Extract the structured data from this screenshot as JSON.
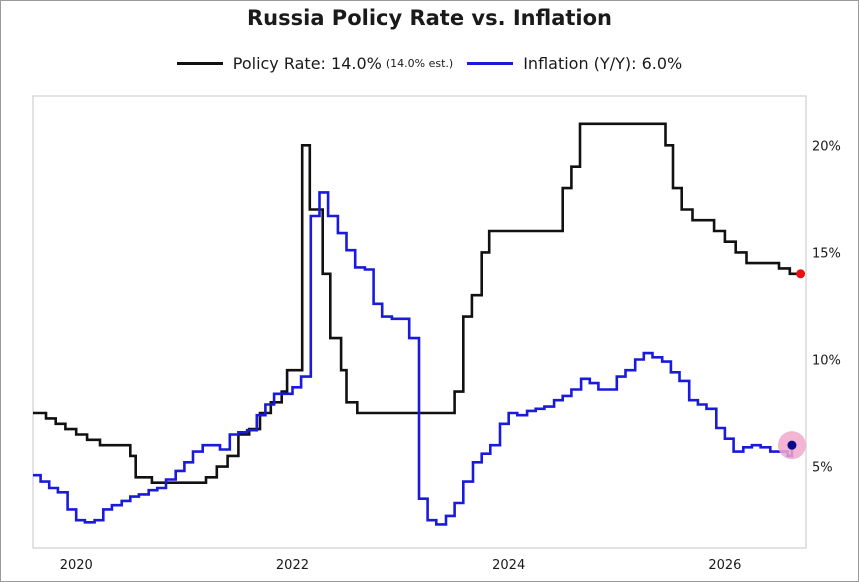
{
  "chart_data": {
    "type": "line",
    "title": "Russia Policy Rate vs. Inflation",
    "xlabel": "",
    "ylabel": "",
    "xlim": [
      2019.6,
      2026.75
    ],
    "ylim": [
      1.2,
      22.3
    ],
    "grid": false,
    "legend_position": "top",
    "x_ticks": [
      {
        "value": 2020,
        "label": "2020"
      },
      {
        "value": 2022,
        "label": "2022"
      },
      {
        "value": 2024,
        "label": "2024"
      },
      {
        "value": 2026,
        "label": "2026"
      }
    ],
    "y_ticks": [
      {
        "value": 5,
        "label": "5%"
      },
      {
        "value": 10,
        "label": "10%"
      },
      {
        "value": 15,
        "label": "15%"
      },
      {
        "value": 20,
        "label": "20%"
      }
    ],
    "series": [
      {
        "name": "Policy Rate",
        "legend_label": "Policy Rate: 14.0%",
        "legend_note": "(14.0% est.)",
        "color": "#111111",
        "endpoint_color": "#e81010",
        "endpoint": [
          2026.7,
          14.0
        ],
        "x": [
          2019.6,
          2019.72,
          2019.81,
          2019.9,
          2020.0,
          2020.1,
          2020.22,
          2020.33,
          2020.5,
          2020.55,
          2020.7,
          2021.0,
          2021.2,
          2021.3,
          2021.4,
          2021.5,
          2021.6,
          2021.7,
          2021.8,
          2021.9,
          2021.95,
          2022.0,
          2022.09,
          2022.16,
          2022.28,
          2022.35,
          2022.45,
          2022.5,
          2022.6,
          2022.75,
          2023.0,
          2023.25,
          2023.5,
          2023.58,
          2023.66,
          2023.75,
          2023.82,
          2023.95,
          2024.5,
          2024.58,
          2024.66,
          2024.75,
          2024.83,
          2025.0,
          2025.25,
          2025.45,
          2025.52,
          2025.6,
          2025.7,
          2025.8,
          2025.9,
          2026.0,
          2026.1,
          2026.2,
          2026.3,
          2026.4,
          2026.5,
          2026.6,
          2026.7
        ],
        "y": [
          7.5,
          7.25,
          7.0,
          6.75,
          6.5,
          6.25,
          6.0,
          6.0,
          5.5,
          4.5,
          4.25,
          4.25,
          4.5,
          5.0,
          5.5,
          6.5,
          6.75,
          7.5,
          8.0,
          8.5,
          9.5,
          9.5,
          20.0,
          17.0,
          14.0,
          11.0,
          9.5,
          8.0,
          7.5,
          7.5,
          7.5,
          7.5,
          8.5,
          12.0,
          13.0,
          15.0,
          16.0,
          16.0,
          18.0,
          19.0,
          21.0,
          21.0,
          21.0,
          21.0,
          21.0,
          20.0,
          18.0,
          17.0,
          16.5,
          16.5,
          16.0,
          15.5,
          15.0,
          14.5,
          14.5,
          14.5,
          14.25,
          14.0,
          14.0
        ]
      },
      {
        "name": "Inflation (Y/Y)",
        "legend_label": "Inflation (Y/Y): 6.0%",
        "color": "#1a1adc",
        "endpoint_color": "#0a0a8a",
        "endpoint_highlight": "#f0a8cc",
        "endpoint": [
          2026.62,
          6.0
        ],
        "x": [
          2019.6,
          2019.67,
          2019.75,
          2019.83,
          2019.92,
          2020.0,
          2020.08,
          2020.17,
          2020.25,
          2020.33,
          2020.42,
          2020.5,
          2020.58,
          2020.67,
          2020.75,
          2020.83,
          2020.92,
          2021.0,
          2021.08,
          2021.17,
          2021.25,
          2021.33,
          2021.42,
          2021.5,
          2021.58,
          2021.67,
          2021.75,
          2021.83,
          2021.92,
          2022.0,
          2022.08,
          2022.17,
          2022.25,
          2022.33,
          2022.42,
          2022.5,
          2022.58,
          2022.67,
          2022.75,
          2022.83,
          2022.92,
          2023.0,
          2023.08,
          2023.17,
          2023.25,
          2023.33,
          2023.42,
          2023.5,
          2023.58,
          2023.67,
          2023.75,
          2023.83,
          2023.92,
          2024.0,
          2024.08,
          2024.17,
          2024.25,
          2024.33,
          2024.42,
          2024.5,
          2024.58,
          2024.67,
          2024.75,
          2024.83,
          2024.92,
          2025.0,
          2025.08,
          2025.17,
          2025.25,
          2025.33,
          2025.42,
          2025.5,
          2025.58,
          2025.67,
          2025.75,
          2025.83,
          2025.92,
          2026.0,
          2026.08,
          2026.17,
          2026.25,
          2026.33,
          2026.42,
          2026.5,
          2026.58,
          2026.62
        ],
        "y": [
          4.6,
          4.3,
          4.0,
          3.8,
          3.0,
          2.5,
          2.4,
          2.5,
          3.0,
          3.2,
          3.4,
          3.6,
          3.7,
          3.9,
          4.0,
          4.4,
          4.8,
          5.2,
          5.7,
          6.0,
          6.0,
          5.8,
          6.5,
          6.6,
          6.7,
          7.4,
          7.9,
          8.4,
          8.4,
          8.7,
          9.2,
          16.7,
          17.8,
          16.7,
          15.9,
          15.1,
          14.3,
          14.2,
          12.6,
          12.0,
          11.9,
          11.9,
          11.0,
          3.5,
          2.5,
          2.3,
          2.7,
          3.3,
          4.3,
          5.2,
          5.6,
          6.0,
          7.0,
          7.5,
          7.4,
          7.6,
          7.7,
          7.8,
          8.1,
          8.3,
          8.6,
          9.1,
          8.9,
          8.6,
          8.6,
          9.2,
          9.5,
          10.0,
          10.3,
          10.1,
          9.9,
          9.4,
          9.0,
          8.1,
          7.9,
          7.7,
          6.8,
          6.3,
          5.7,
          5.9,
          6.0,
          5.9,
          5.7,
          5.7,
          5.5,
          6.0
        ]
      }
    ]
  }
}
